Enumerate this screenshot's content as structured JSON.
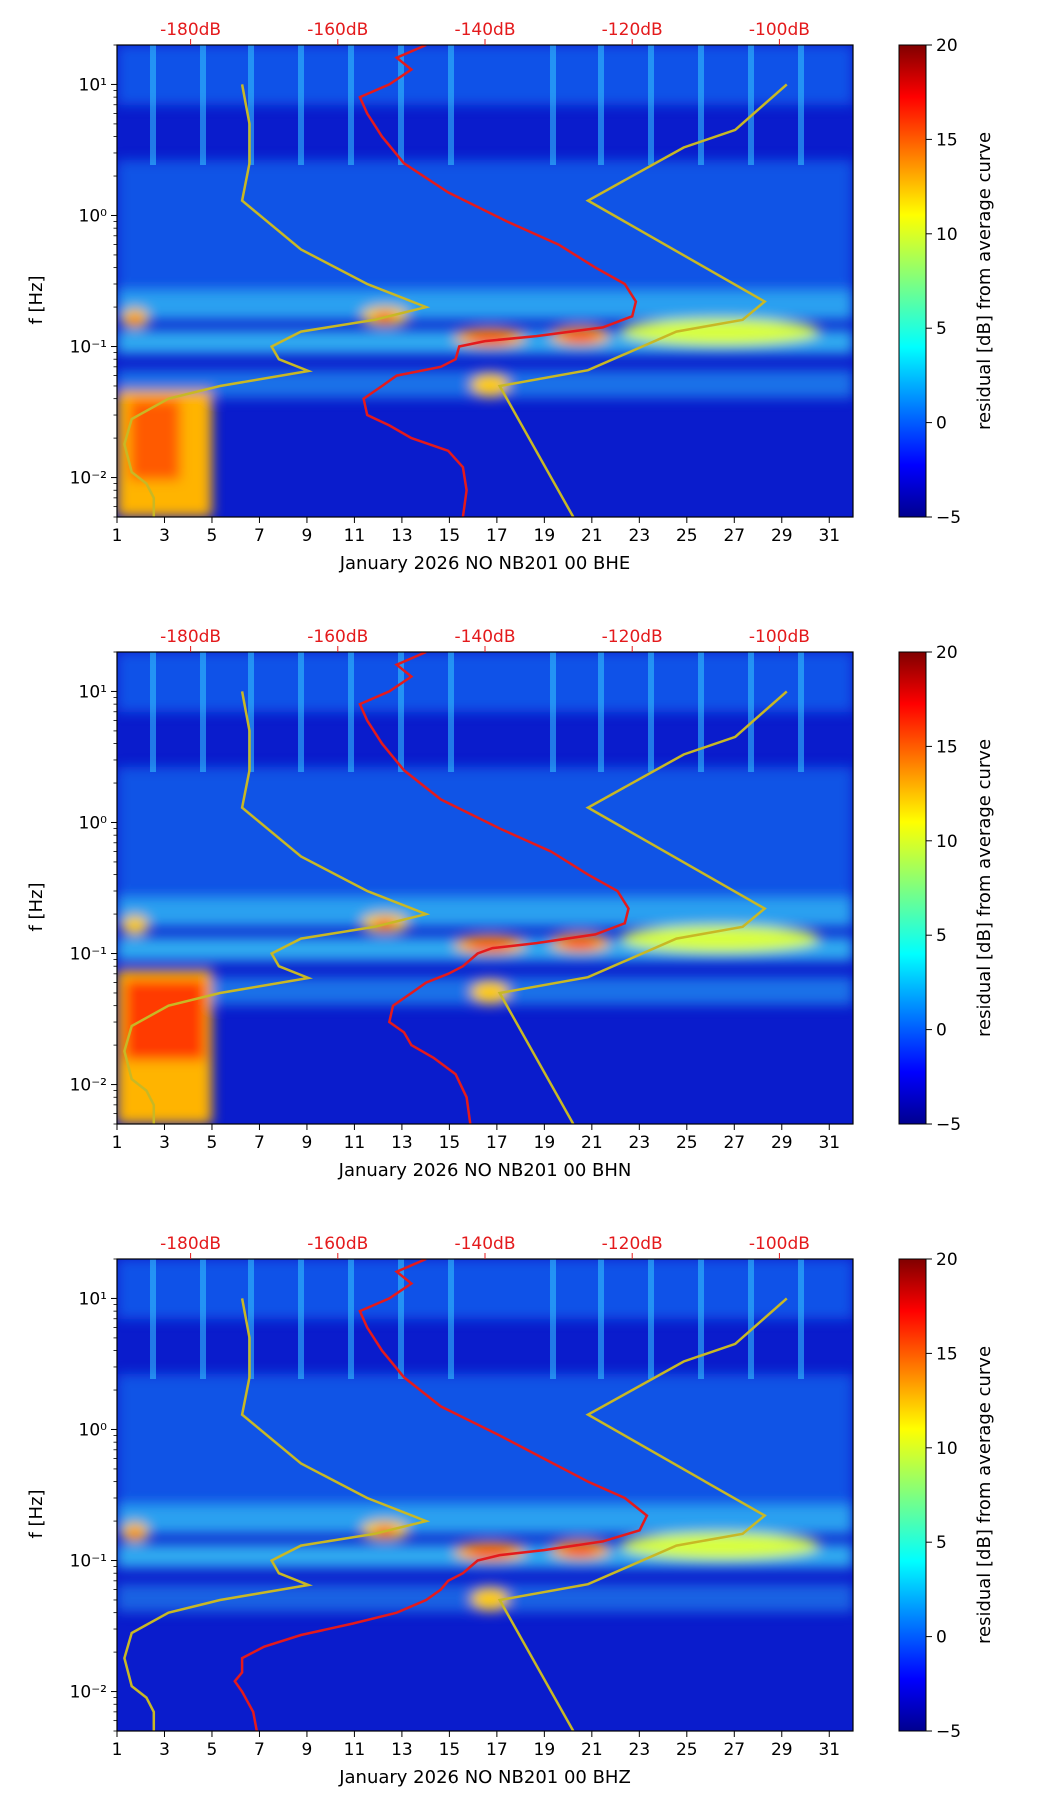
{
  "colors": {
    "noise_line": "#e41a1c",
    "model_line": "#c8b825",
    "top_axis_text": "#e41a1c",
    "frame": "#000000"
  },
  "colorbar": {
    "label": "residual [dB] from average curve",
    "range": [
      -5,
      20
    ],
    "ticks": [
      "20",
      "15",
      "10",
      "5",
      "0",
      "−5"
    ],
    "tick_values": [
      20,
      15,
      10,
      5,
      0,
      -5
    ]
  },
  "top_axis": {
    "labels": [
      "-180dB",
      "-160dB",
      "-140dB",
      "-120dB",
      "-100dB"
    ],
    "values": [
      -180,
      -160,
      -140,
      -120,
      -100
    ],
    "range": [
      -190,
      -90
    ]
  },
  "x_axis": {
    "tick_labels": [
      "1",
      "3",
      "5",
      "7",
      "9",
      "11",
      "13",
      "15",
      "17",
      "19",
      "21",
      "23",
      "25",
      "27",
      "29",
      "31"
    ],
    "tick_values": [
      1,
      3,
      5,
      7,
      9,
      11,
      13,
      15,
      17,
      19,
      21,
      23,
      25,
      27,
      29,
      31
    ],
    "range": [
      1,
      32
    ]
  },
  "y_axis": {
    "label": "f [Hz]",
    "range": [
      0.005,
      20
    ],
    "scale": "log",
    "tick_values": [
      10,
      1,
      0.1,
      0.01
    ]
  },
  "chart_data": [
    {
      "type": "heatmap",
      "xlabel": "January 2026 NO NB201 00 BHE",
      "ylabel": "f [Hz]",
      "colorbar_label": "residual [dB] from average curve",
      "clim": [
        -5,
        20
      ],
      "noise_curve_db_vs_hz": [
        [
          -143,
          0.005
        ],
        [
          -142.5,
          0.008
        ],
        [
          -143,
          0.012
        ],
        [
          -145,
          0.016
        ],
        [
          -150,
          0.02
        ],
        [
          -153,
          0.025
        ],
        [
          -156,
          0.03
        ],
        [
          -156.5,
          0.04
        ],
        [
          -154,
          0.05
        ],
        [
          -152,
          0.06
        ],
        [
          -146,
          0.07
        ],
        [
          -144,
          0.08
        ],
        [
          -143.5,
          0.1
        ],
        [
          -140,
          0.11
        ],
        [
          -133,
          0.12
        ],
        [
          -124,
          0.14
        ],
        [
          -120,
          0.17
        ],
        [
          -119.5,
          0.22
        ],
        [
          -121,
          0.3
        ],
        [
          -125,
          0.4
        ],
        [
          -130,
          0.6
        ],
        [
          -137,
          0.9
        ],
        [
          -145,
          1.5
        ],
        [
          -151,
          2.5
        ],
        [
          -154,
          4
        ],
        [
          -156,
          6
        ],
        [
          -157,
          8
        ],
        [
          -153,
          10
        ],
        [
          -150,
          13
        ],
        [
          -152,
          16
        ],
        [
          -148,
          20
        ]
      ],
      "low_model_db_vs_hz": [
        [
          -185,
          0.005
        ],
        [
          -185,
          0.007
        ],
        [
          -186,
          0.009
        ],
        [
          -188,
          0.011
        ],
        [
          -189,
          0.018
        ],
        [
          -188,
          0.028
        ],
        [
          -183,
          0.04
        ],
        [
          -176,
          0.05
        ],
        [
          -164,
          0.065
        ],
        [
          -168,
          0.08
        ],
        [
          -169,
          0.1
        ],
        [
          -165,
          0.13
        ],
        [
          -155,
          0.16
        ],
        [
          -148,
          0.2
        ],
        [
          -156,
          0.3
        ],
        [
          -165,
          0.55
        ],
        [
          -173,
          1.3
        ],
        [
          -172,
          2.5
        ],
        [
          -172,
          5
        ],
        [
          -173,
          10
        ]
      ],
      "high_model_db_vs_hz": [
        [
          -128,
          0.005
        ],
        [
          -138,
          0.05
        ],
        [
          -126,
          0.066
        ],
        [
          -114,
          0.13
        ],
        [
          -105,
          0.16
        ],
        [
          -102,
          0.22
        ],
        [
          -126,
          1.3
        ],
        [
          -113,
          3.3
        ],
        [
          -106,
          4.5
        ],
        [
          -99,
          10
        ]
      ]
    },
    {
      "type": "heatmap",
      "xlabel": "January 2026 NO NB201 00 BHN",
      "ylabel": "f [Hz]",
      "colorbar_label": "residual [dB] from average curve",
      "clim": [
        -5,
        20
      ],
      "noise_curve_db_vs_hz": [
        [
          -142,
          0.005
        ],
        [
          -142.5,
          0.008
        ],
        [
          -144,
          0.012
        ],
        [
          -147,
          0.016
        ],
        [
          -150,
          0.02
        ],
        [
          -151,
          0.025
        ],
        [
          -153,
          0.03
        ],
        [
          -152.5,
          0.04
        ],
        [
          -150,
          0.05
        ],
        [
          -148,
          0.06
        ],
        [
          -145,
          0.07
        ],
        [
          -143,
          0.08
        ],
        [
          -141,
          0.1
        ],
        [
          -139,
          0.11
        ],
        [
          -133,
          0.12
        ],
        [
          -125,
          0.14
        ],
        [
          -121,
          0.17
        ],
        [
          -120.5,
          0.22
        ],
        [
          -122,
          0.3
        ],
        [
          -126,
          0.4
        ],
        [
          -131,
          0.6
        ],
        [
          -138,
          0.9
        ],
        [
          -146,
          1.5
        ],
        [
          -151,
          2.5
        ],
        [
          -154,
          4
        ],
        [
          -156,
          6
        ],
        [
          -157,
          8
        ],
        [
          -153,
          10
        ],
        [
          -150,
          13
        ],
        [
          -152,
          16
        ],
        [
          -148,
          20
        ]
      ],
      "low_model_db_vs_hz": [
        [
          -185,
          0.005
        ],
        [
          -185,
          0.007
        ],
        [
          -186,
          0.009
        ],
        [
          -188,
          0.011
        ],
        [
          -189,
          0.018
        ],
        [
          -188,
          0.028
        ],
        [
          -183,
          0.04
        ],
        [
          -176,
          0.05
        ],
        [
          -164,
          0.065
        ],
        [
          -168,
          0.08
        ],
        [
          -169,
          0.1
        ],
        [
          -165,
          0.13
        ],
        [
          -155,
          0.16
        ],
        [
          -148,
          0.2
        ],
        [
          -156,
          0.3
        ],
        [
          -165,
          0.55
        ],
        [
          -173,
          1.3
        ],
        [
          -172,
          2.5
        ],
        [
          -172,
          5
        ],
        [
          -173,
          10
        ]
      ],
      "high_model_db_vs_hz": [
        [
          -128,
          0.005
        ],
        [
          -138,
          0.05
        ],
        [
          -126,
          0.066
        ],
        [
          -114,
          0.13
        ],
        [
          -105,
          0.16
        ],
        [
          -102,
          0.22
        ],
        [
          -126,
          1.3
        ],
        [
          -113,
          3.3
        ],
        [
          -106,
          4.5
        ],
        [
          -99,
          10
        ]
      ]
    },
    {
      "type": "heatmap",
      "xlabel": "January 2026 NO NB201 00 BHZ",
      "ylabel": "f [Hz]",
      "colorbar_label": "residual [dB] from average curve",
      "clim": [
        -5,
        20
      ],
      "noise_curve_db_vs_hz": [
        [
          -171,
          0.005
        ],
        [
          -171.5,
          0.007
        ],
        [
          -173,
          0.01
        ],
        [
          -174,
          0.012
        ],
        [
          -173,
          0.014
        ],
        [
          -173,
          0.018
        ],
        [
          -170,
          0.022
        ],
        [
          -165,
          0.027
        ],
        [
          -158,
          0.033
        ],
        [
          -152,
          0.04
        ],
        [
          -148,
          0.05
        ],
        [
          -146,
          0.06
        ],
        [
          -145,
          0.07
        ],
        [
          -143,
          0.08
        ],
        [
          -141,
          0.1
        ],
        [
          -138,
          0.11
        ],
        [
          -132,
          0.12
        ],
        [
          -124,
          0.14
        ],
        [
          -119,
          0.17
        ],
        [
          -118,
          0.22
        ],
        [
          -121,
          0.3
        ],
        [
          -126,
          0.4
        ],
        [
          -132,
          0.6
        ],
        [
          -138,
          0.9
        ],
        [
          -146,
          1.5
        ],
        [
          -151,
          2.5
        ],
        [
          -154,
          4
        ],
        [
          -156,
          6
        ],
        [
          -157,
          8
        ],
        [
          -153,
          10
        ],
        [
          -150,
          13
        ],
        [
          -152,
          16
        ],
        [
          -148,
          20
        ]
      ],
      "low_model_db_vs_hz": [
        [
          -185,
          0.005
        ],
        [
          -185,
          0.007
        ],
        [
          -186,
          0.009
        ],
        [
          -188,
          0.011
        ],
        [
          -189,
          0.018
        ],
        [
          -188,
          0.028
        ],
        [
          -183,
          0.04
        ],
        [
          -176,
          0.05
        ],
        [
          -164,
          0.065
        ],
        [
          -168,
          0.08
        ],
        [
          -169,
          0.1
        ],
        [
          -165,
          0.13
        ],
        [
          -155,
          0.16
        ],
        [
          -148,
          0.2
        ],
        [
          -156,
          0.3
        ],
        [
          -165,
          0.55
        ],
        [
          -173,
          1.3
        ],
        [
          -172,
          2.5
        ],
        [
          -172,
          5
        ],
        [
          -173,
          10
        ]
      ],
      "high_model_db_vs_hz": [
        [
          -128,
          0.005
        ],
        [
          -138,
          0.05
        ],
        [
          -126,
          0.066
        ],
        [
          -114,
          0.13
        ],
        [
          -105,
          0.16
        ],
        [
          -102,
          0.22
        ],
        [
          -126,
          1.3
        ],
        [
          -113,
          3.3
        ],
        [
          -106,
          4.5
        ],
        [
          -99,
          10
        ]
      ]
    }
  ]
}
